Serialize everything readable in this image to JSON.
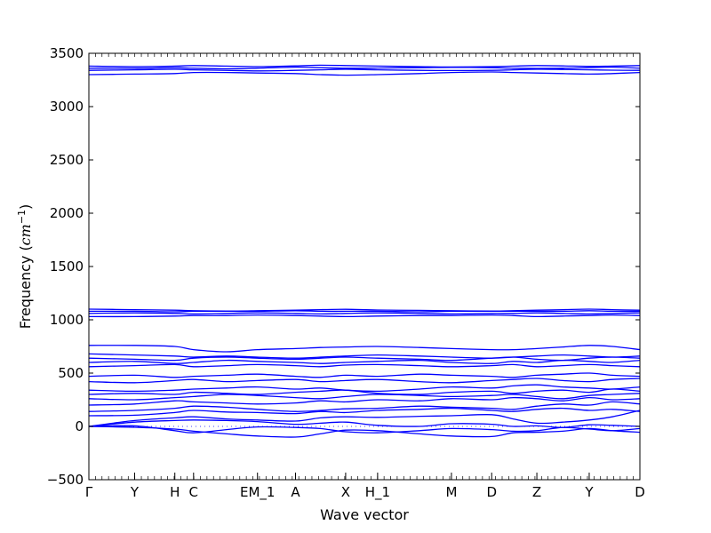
{
  "chart_data": {
    "type": "line",
    "title": "",
    "xlabel": "Wave vector",
    "ylabel_main": "Frequency (",
    "ylabel_unit": "cm",
    "ylabel_exp": "−1",
    "ylabel_close": ")",
    "ylim": [
      -500,
      3500
    ],
    "xlim": [
      0,
      1
    ],
    "y_ticks": [
      {
        "value": -500,
        "label": "−500"
      },
      {
        "value": 0,
        "label": "0"
      },
      {
        "value": 500,
        "label": "500"
      },
      {
        "value": 1000,
        "label": "1000"
      },
      {
        "value": 1500,
        "label": "1500"
      },
      {
        "value": 2000,
        "label": "2000"
      },
      {
        "value": 2500,
        "label": "2500"
      },
      {
        "value": 3000,
        "label": "3000"
      },
      {
        "value": 3500,
        "label": "3500"
      }
    ],
    "x_ticks": [
      {
        "pos": 0.0,
        "label": "Γ"
      },
      {
        "pos": 0.083,
        "label": "Y"
      },
      {
        "pos": 0.156,
        "label": "H"
      },
      {
        "pos": 0.19,
        "label": "C"
      },
      {
        "pos": 0.306,
        "label": "EM_1"
      },
      {
        "pos": 0.375,
        "label": "A"
      },
      {
        "pos": 0.466,
        "label": "X"
      },
      {
        "pos": 0.524,
        "label": "H_1"
      },
      {
        "pos": 0.658,
        "label": "M"
      },
      {
        "pos": 0.731,
        "label": "D"
      },
      {
        "pos": 0.813,
        "label": "Z"
      },
      {
        "pos": 0.908,
        "label": "Y"
      },
      {
        "pos": 1.0,
        "label": "D"
      }
    ],
    "zero_line": {
      "value": 0,
      "style": "dotted"
    },
    "series_color": "#0000ff",
    "bands": {
      "grid_x": [
        0,
        0.083,
        0.156,
        0.19,
        0.25,
        0.306,
        0.375,
        0.42,
        0.466,
        0.524,
        0.6,
        0.658,
        0.731,
        0.77,
        0.813,
        0.86,
        0.908,
        0.95,
        1.0
      ],
      "lines": [
        [
          0,
          -8,
          -25,
          -45,
          -70,
          -90,
          -100,
          -70,
          -35,
          -40,
          -70,
          -90,
          -95,
          -60,
          -55,
          -45,
          -20,
          -40,
          -55
        ],
        [
          0,
          5,
          -40,
          -60,
          -30,
          -5,
          -10,
          -20,
          -50,
          -60,
          -40,
          -20,
          -30,
          -45,
          -40,
          -10,
          -25,
          -40,
          -20
        ],
        [
          0,
          40,
          55,
          60,
          55,
          45,
          20,
          30,
          40,
          10,
          0,
          25,
          20,
          0,
          5,
          -10,
          15,
          10,
          0
        ],
        [
          0,
          55,
          80,
          90,
          70,
          60,
          50,
          80,
          90,
          85,
          95,
          100,
          110,
          70,
          30,
          40,
          60,
          90,
          150
        ],
        [
          100,
          105,
          130,
          150,
          135,
          130,
          120,
          140,
          130,
          150,
          160,
          170,
          150,
          140,
          160,
          170,
          150,
          160,
          140
        ],
        [
          140,
          150,
          170,
          190,
          180,
          160,
          140,
          150,
          165,
          170,
          190,
          180,
          170,
          160,
          190,
          210,
          200,
          230,
          210
        ],
        [
          200,
          210,
          240,
          230,
          220,
          210,
          220,
          240,
          230,
          250,
          240,
          260,
          250,
          270,
          260,
          240,
          270,
          250,
          260
        ],
        [
          260,
          250,
          270,
          280,
          300,
          290,
          270,
          260,
          280,
          300,
          290,
          280,
          290,
          300,
          280,
          260,
          290,
          300,
          310
        ],
        [
          300,
          310,
          300,
          320,
          310,
          300,
          320,
          330,
          340,
          310,
          300,
          320,
          330,
          310,
          330,
          340,
          320,
          350,
          330
        ],
        [
          340,
          330,
          340,
          350,
          360,
          370,
          350,
          360,
          340,
          330,
          350,
          370,
          360,
          380,
          390,
          370,
          360,
          350,
          370
        ],
        [
          420,
          410,
          430,
          440,
          420,
          430,
          440,
          420,
          430,
          440,
          420,
          410,
          430,
          440,
          450,
          430,
          420,
          440,
          450
        ],
        [
          470,
          480,
          460,
          470,
          480,
          490,
          470,
          460,
          480,
          470,
          490,
          480,
          470,
          460,
          480,
          490,
          500,
          480,
          470
        ],
        [
          560,
          570,
          580,
          560,
          570,
          580,
          570,
          560,
          575,
          580,
          570,
          560,
          570,
          580,
          560,
          570,
          580,
          570,
          560
        ],
        [
          600,
          610,
          590,
          600,
          620,
          610,
          600,
          590,
          600,
          610,
          620,
          600,
          590,
          610,
          600,
          620,
          610,
          600,
          620
        ],
        [
          640,
          630,
          620,
          640,
          650,
          640,
          630,
          640,
          650,
          640,
          630,
          620,
          640,
          650,
          630,
          620,
          640,
          650,
          640
        ],
        [
          680,
          670,
          660,
          650,
          660,
          650,
          640,
          650,
          660,
          670,
          660,
          650,
          640,
          650,
          660,
          670,
          660,
          650,
          660
        ],
        [
          760,
          760,
          750,
          720,
          700,
          720,
          730,
          740,
          745,
          750,
          740,
          730,
          720,
          720,
          730,
          745,
          760,
          750,
          720
        ],
        [
          1030,
          1030,
          1035,
          1040,
          1040,
          1045,
          1040,
          1035,
          1030,
          1035,
          1040,
          1040,
          1045,
          1040,
          1030,
          1035,
          1040,
          1045,
          1040
        ],
        [
          1060,
          1065,
          1060,
          1055,
          1060,
          1065,
          1060,
          1055,
          1060,
          1065,
          1060,
          1055,
          1060,
          1060,
          1065,
          1060,
          1055,
          1060,
          1065
        ],
        [
          1080,
          1080,
          1075,
          1080,
          1080,
          1080,
          1085,
          1080,
          1080,
          1080,
          1075,
          1080,
          1080,
          1080,
          1080,
          1080,
          1085,
          1080,
          1080
        ],
        [
          1100,
          1095,
          1090,
          1085,
          1082,
          1085,
          1090,
          1095,
          1098,
          1092,
          1088,
          1085,
          1082,
          1085,
          1090,
          1095,
          1100,
          1095,
          1090
        ],
        [
          3300,
          3305,
          3310,
          3320,
          3320,
          3315,
          3310,
          3300,
          3295,
          3300,
          3310,
          3320,
          3325,
          3320,
          3315,
          3310,
          3305,
          3310,
          3320
        ],
        [
          3340,
          3345,
          3350,
          3345,
          3340,
          3335,
          3340,
          3345,
          3350,
          3345,
          3340,
          3338,
          3340,
          3345,
          3350,
          3348,
          3345,
          3342,
          3340
        ],
        [
          3360,
          3360,
          3365,
          3360,
          3355,
          3360,
          3370,
          3365,
          3360,
          3362,
          3365,
          3368,
          3365,
          3360,
          3358,
          3360,
          3365,
          3370,
          3360
        ],
        [
          3380,
          3375,
          3380,
          3385,
          3380,
          3375,
          3382,
          3388,
          3385,
          3380,
          3375,
          3372,
          3375,
          3380,
          3385,
          3382,
          3378,
          3380,
          3385
        ]
      ]
    }
  }
}
